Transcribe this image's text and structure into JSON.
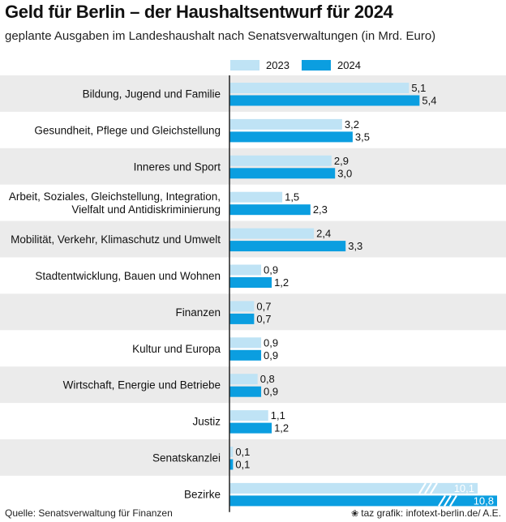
{
  "header": {
    "title": "Geld für Berlin – der Haushaltsentwurf für 2024",
    "subtitle": "geplante Ausgaben im Landeshaushalt nach Senatsverwaltungen (in Mrd. Euro)"
  },
  "footer": {
    "source": "Quelle: Senatsverwaltung für Finanzen",
    "credit": "taz grafik: infotext-berlin.de/ A.E."
  },
  "colors": {
    "series_2023": "#bfe3f5",
    "series_2024": "#0b9ee0",
    "band": "#ebebeb"
  },
  "chart_data": {
    "type": "bar",
    "orientation": "horizontal",
    "title": "Geld für Berlin – der Haushaltsentwurf für 2024",
    "unit": "Mrd. Euro",
    "categories": [
      [
        "Bildung, Jugend und Familie"
      ],
      [
        "Gesundheit, Pflege und Gleichstellung"
      ],
      [
        "Inneres und Sport"
      ],
      [
        "Arbeit, Soziales, Gleichstellung, Integration,",
        "Vielfalt und Antidiskriminierung"
      ],
      [
        "Mobilität, Verkehr, Klimaschutz und Umwelt"
      ],
      [
        "Stadtentwicklung, Bauen und Wohnen"
      ],
      [
        "Finanzen"
      ],
      [
        "Kultur und Europa"
      ],
      [
        "Wirtschaft, Energie und Betriebe"
      ],
      [
        "Justiz"
      ],
      [
        "Senatskanzlei"
      ],
      [
        "Bezirke"
      ]
    ],
    "series": [
      {
        "name": "2023",
        "values": [
          5.1,
          3.2,
          2.9,
          1.5,
          2.4,
          0.9,
          0.7,
          0.9,
          0.8,
          1.1,
          0.1,
          10.1
        ],
        "labels": [
          "5,1",
          "3,2",
          "2,9",
          "1,5",
          "2,4",
          "0,9",
          "0,7",
          "0,9",
          "0,8",
          "1,1",
          "0,1",
          "10,1"
        ]
      },
      {
        "name": "2024",
        "values": [
          5.4,
          3.5,
          3.0,
          2.3,
          3.3,
          1.2,
          0.7,
          0.9,
          0.9,
          1.2,
          0.1,
          10.8
        ],
        "labels": [
          "5,4",
          "3,5",
          "3,0",
          "2,3",
          "3,3",
          "1,2",
          "0,7",
          "0,9",
          "0,9",
          "1,2",
          "0,1",
          "10,8"
        ]
      }
    ],
    "axis_break": {
      "category": "Bezirke",
      "note": "bars truncated with break marks"
    },
    "xlim": [
      0,
      5.6
    ]
  }
}
